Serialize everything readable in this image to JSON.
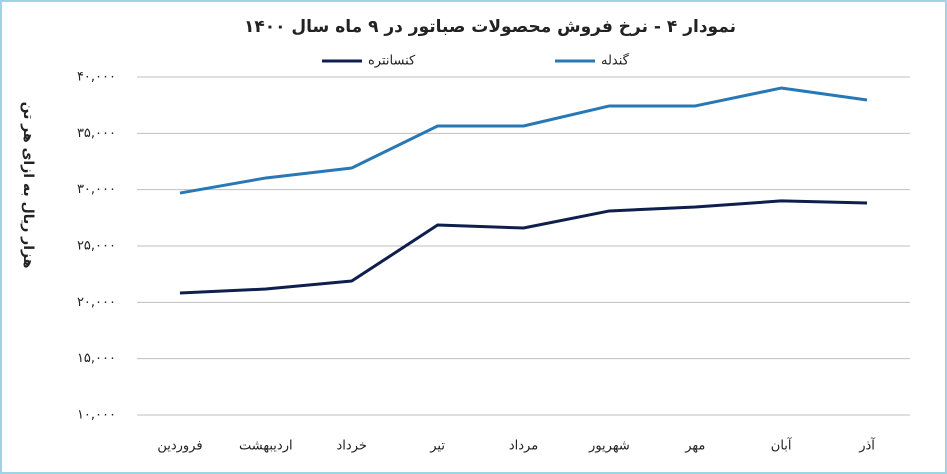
{
  "chart_data": {
    "type": "line",
    "title": "نمودار ۴ - نرخ فروش محصولات صباتور در ۹ ماه سال ۱۴۰۰",
    "y_label": "هزار ریال به ازای هر تن",
    "categories": [
      "فروردین",
      "اردیبهشت",
      "خرداد",
      "تیر",
      "مرداد",
      "شهریور",
      "مهر",
      "آبان",
      "آذر"
    ],
    "series": [
      {
        "name": "کنسانتره",
        "color": "#0f1f4d",
        "values": [
          20830,
          21180,
          21890,
          26860,
          26600,
          28110,
          28460,
          29000,
          28820
        ]
      },
      {
        "name": "گندله",
        "color": "#2878b5",
        "values": [
          29700,
          31040,
          31920,
          35650,
          35650,
          37430,
          37430,
          39020,
          37960
        ]
      }
    ],
    "ylim": [
      10000,
      40000
    ],
    "yticks": [
      {
        "value": 10000,
        "label": "۱۰,۰۰۰"
      },
      {
        "value": 15000,
        "label": "۱۵,۰۰۰"
      },
      {
        "value": 20000,
        "label": "۲۰,۰۰۰"
      },
      {
        "value": 25000,
        "label": "۲۵,۰۰۰"
      },
      {
        "value": 30000,
        "label": "۳۰,۰۰۰"
      },
      {
        "value": 35000,
        "label": "۳۵,۰۰۰"
      },
      {
        "value": 40000,
        "label": "۴۰,۰۰۰"
      }
    ],
    "grid": true,
    "legend": "top"
  }
}
